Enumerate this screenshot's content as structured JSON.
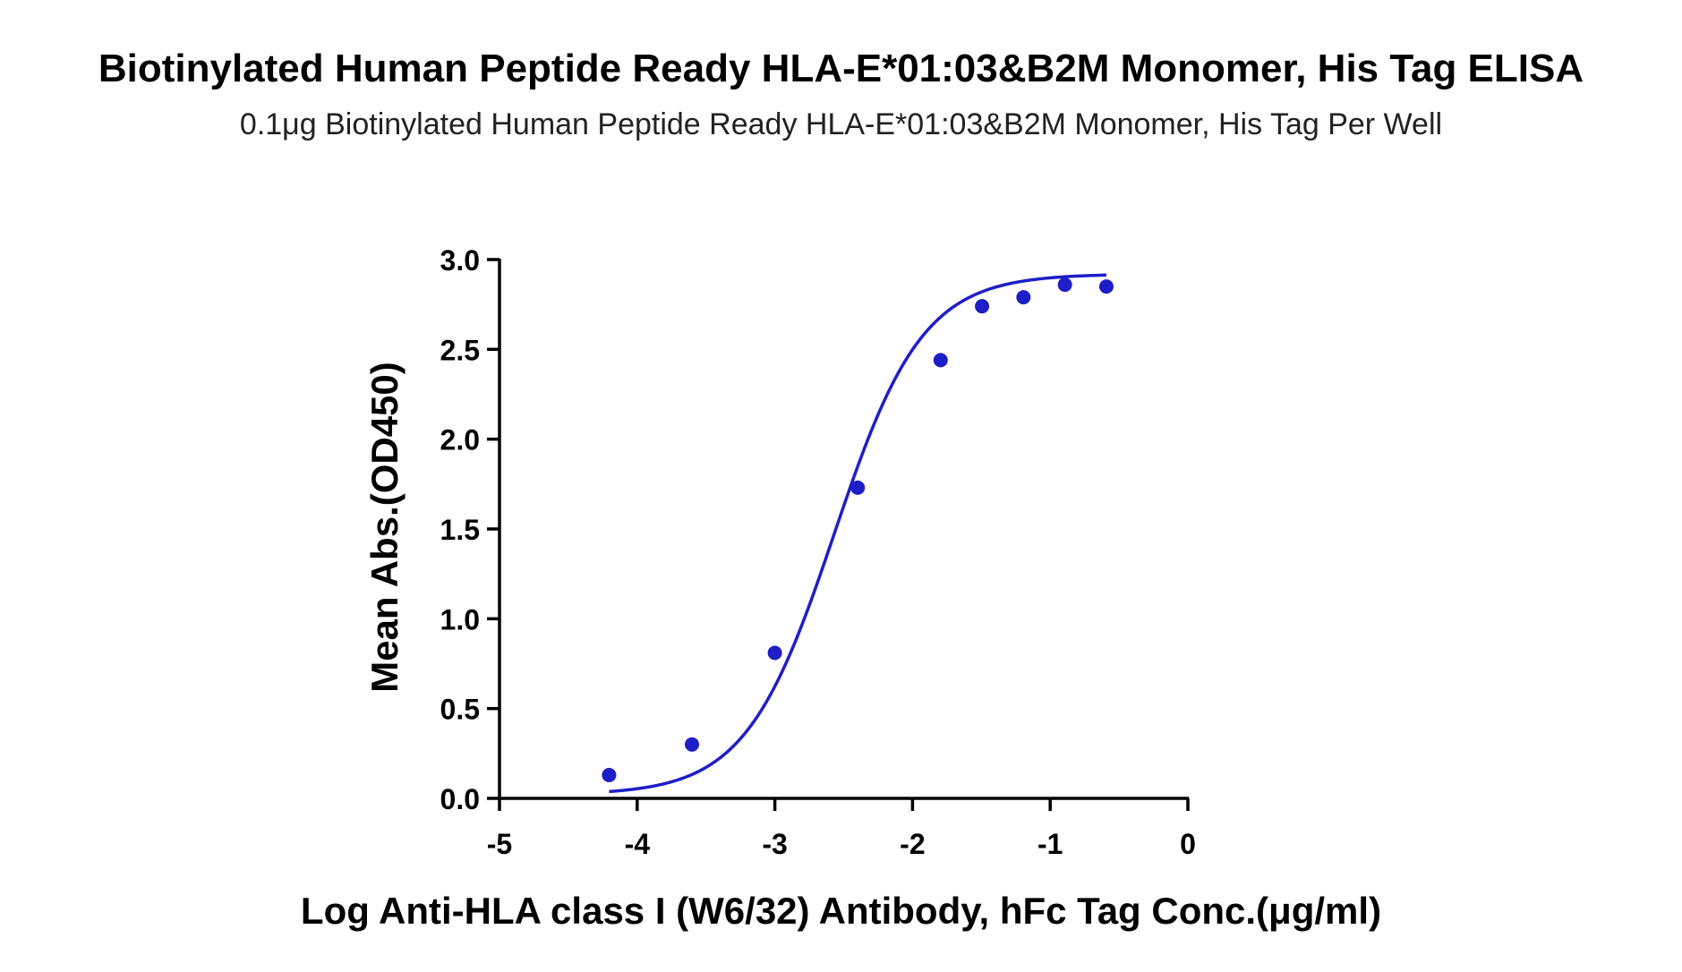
{
  "chart_data": {
    "type": "scatter",
    "title": "Biotinylated Human Peptide Ready HLA-E*01:03&B2M Monomer, His Tag ELISA",
    "subtitle": "0.1μg Biotinylated Human Peptide Ready HLA-E*01:03&B2M Monomer, His Tag Per Well",
    "xlabel": "Log  Anti-HLA class I (W6/32) Antibody, hFc Tag Conc.(μg/ml)",
    "ylabel": "Mean Abs.(OD450)",
    "xlim": [
      -5,
      0
    ],
    "ylim": [
      0,
      3.0
    ],
    "x_ticks": [
      "-5",
      "-4",
      "-3",
      "-2",
      "-1",
      "0"
    ],
    "y_ticks": [
      "0.0",
      "0.5",
      "1.0",
      "1.5",
      "2.0",
      "2.5",
      "3.0"
    ],
    "grid": false,
    "legend": "none",
    "series": [
      {
        "x": [
          -4.204,
          -3.602,
          -3.0,
          -2.398,
          -1.796,
          -1.495,
          -1.194,
          -0.893,
          -0.592
        ],
        "y": [
          0.13,
          0.3,
          0.81,
          1.73,
          2.44,
          2.74,
          2.79,
          2.86,
          2.85
        ],
        "color": "#1e1ec8",
        "fit": "4PL sigmoid"
      }
    ]
  }
}
